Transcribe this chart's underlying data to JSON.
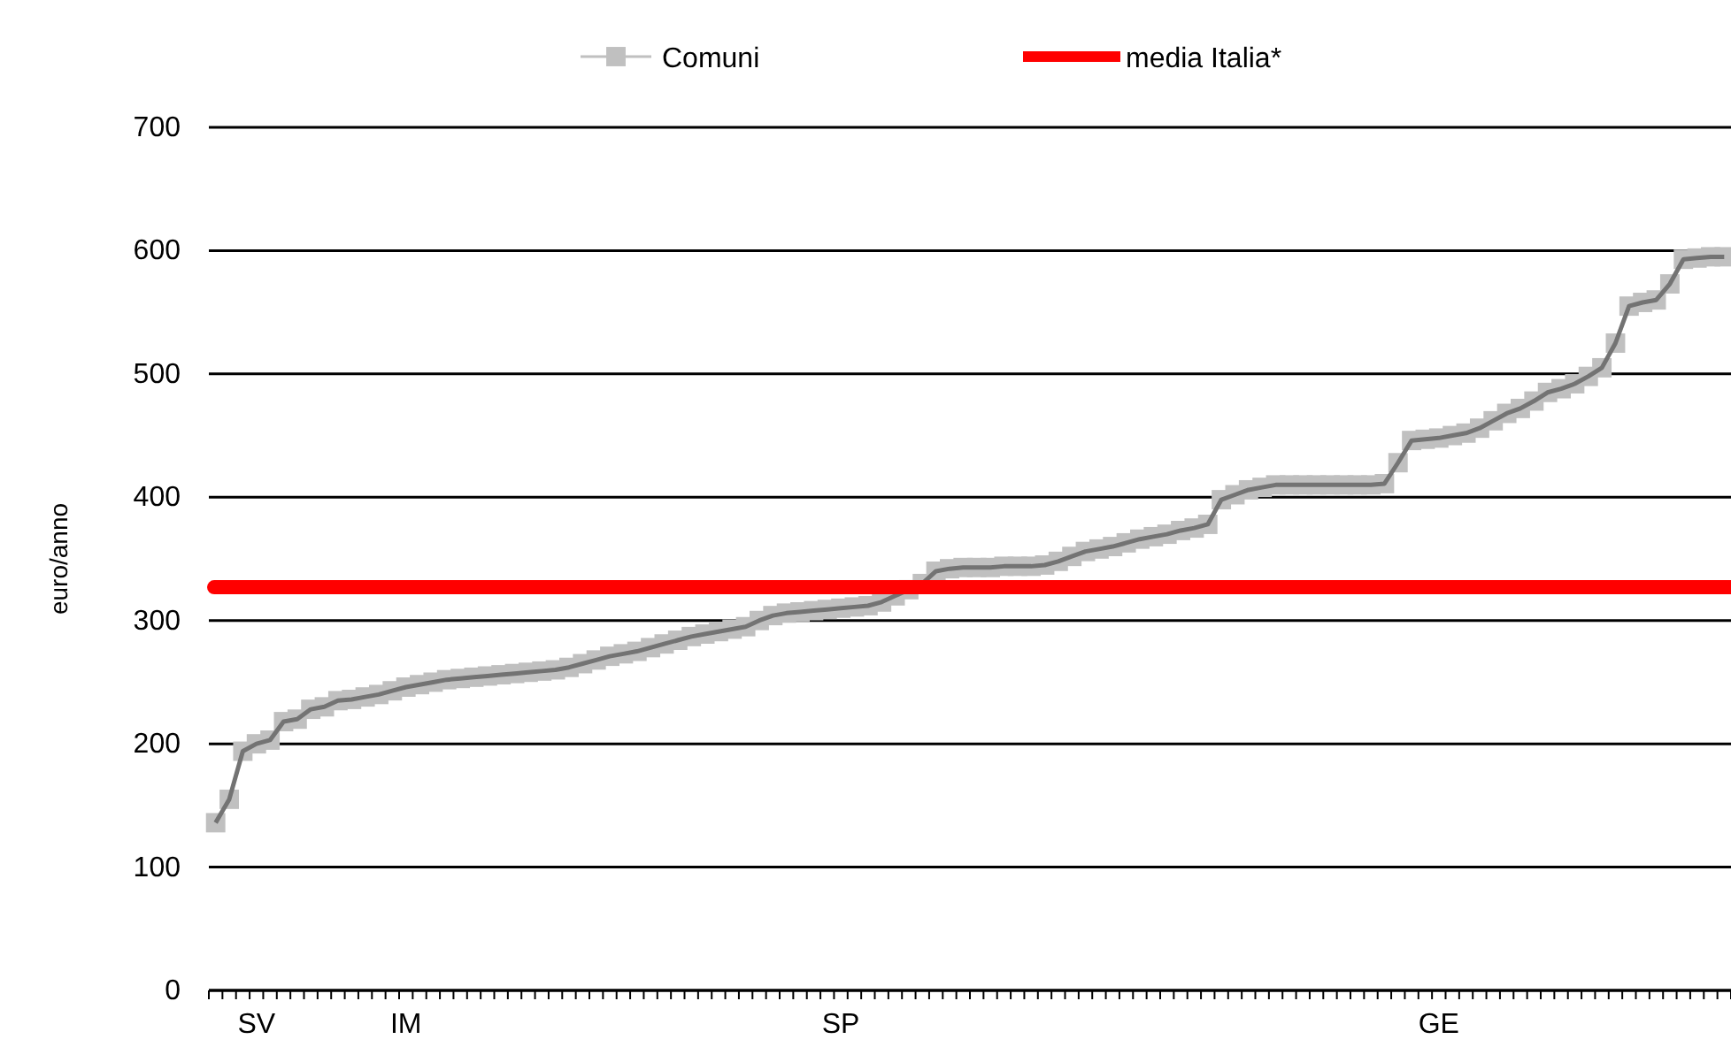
{
  "chart_data": {
    "type": "line",
    "ylabel": "euro/anno",
    "categories": [
      null,
      null,
      null,
      "SV",
      null,
      null,
      null,
      null,
      null,
      null,
      null,
      null,
      null,
      null,
      "IM",
      null,
      null,
      null,
      null,
      null,
      null,
      null,
      null,
      null,
      null,
      null,
      null,
      null,
      null,
      null,
      null,
      null,
      null,
      null,
      null,
      null,
      null,
      null,
      null,
      null,
      null,
      null,
      null,
      null,
      null,
      null,
      "SP",
      null,
      null,
      null,
      null,
      null,
      null,
      null,
      null,
      null,
      null,
      null,
      null,
      null,
      null,
      null,
      null,
      null,
      null,
      null,
      null,
      null,
      null,
      null,
      null,
      null,
      null,
      null,
      null,
      null,
      null,
      null,
      null,
      null,
      null,
      null,
      null,
      null,
      null,
      null,
      null,
      null,
      null,
      null,
      "GE",
      null,
      null,
      null,
      null,
      null,
      null,
      null,
      null,
      null,
      null,
      null,
      null,
      null,
      null,
      null,
      null,
      null,
      null,
      null,
      null,
      null
    ],
    "series": [
      {
        "name": "Comuni",
        "color": "#c0c0c0",
        "values": [
          136,
          155,
          194,
          200,
          203,
          218,
          220,
          228,
          230,
          235,
          236,
          238,
          240,
          243,
          246,
          248,
          250,
          252,
          253,
          254,
          255,
          256,
          257,
          258,
          259,
          260,
          262,
          265,
          268,
          271,
          273,
          275,
          278,
          281,
          284,
          287,
          289,
          291,
          293,
          295,
          300,
          304,
          306,
          307,
          308,
          309,
          310,
          311,
          312,
          315,
          320,
          325,
          330,
          340,
          342,
          343,
          343,
          343,
          344,
          344,
          344,
          345,
          348,
          352,
          356,
          358,
          360,
          363,
          366,
          368,
          370,
          373,
          375,
          378,
          398,
          402,
          406,
          408,
          410,
          410,
          410,
          410,
          410,
          410,
          410,
          410,
          411,
          428,
          446,
          447,
          448,
          450,
          452,
          456,
          462,
          468,
          472,
          478,
          485,
          488,
          492,
          498,
          505,
          525,
          555,
          558,
          560,
          573,
          593,
          594,
          595,
          595
        ]
      }
    ],
    "ref_lines": [
      {
        "axis": "y",
        "value": 327,
        "label": "media Italia*",
        "color": "#ff0000"
      }
    ],
    "ylim": [
      0,
      700
    ],
    "yticks": [
      0,
      100,
      200,
      300,
      400,
      500,
      600,
      700
    ],
    "grid": "y",
    "legend": "top",
    "marker": "square",
    "line_style": "solid"
  }
}
